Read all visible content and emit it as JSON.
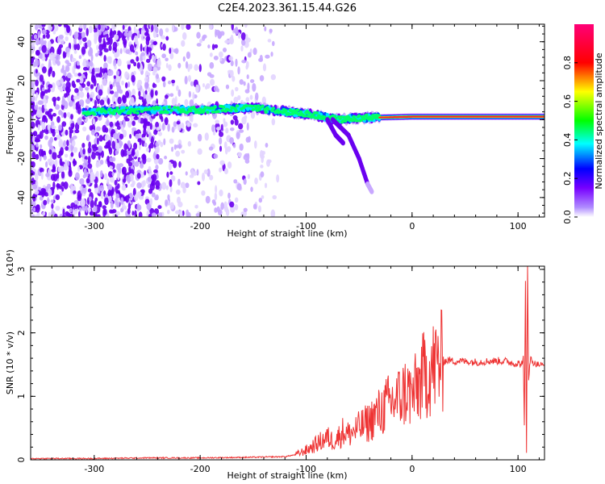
{
  "title": "C2E4.2023.361.15.44.G26",
  "chart_data": [
    {
      "type": "heatmap",
      "xlabel": "Height of straight line (km)",
      "ylabel": "Frequency (Hz)",
      "xlim": [
        -360,
        125
      ],
      "ylim": [
        -50,
        49
      ],
      "xticks": [
        -300,
        -200,
        -100,
        0,
        100
      ],
      "xtick_labels": [
        "-300",
        "-200",
        "-100",
        "0",
        "100"
      ],
      "yticks": [
        -40,
        -20,
        0,
        20,
        40
      ],
      "ytick_labels": [
        "-40",
        "-20",
        "0",
        "20",
        "40"
      ],
      "colorbar": {
        "label": "Normalized spectral amplitude",
        "range": [
          0,
          1
        ],
        "ticks": [
          0,
          0.2,
          0.4,
          0.6,
          0.8
        ],
        "tick_labels": [
          "0.0",
          "0.2",
          "0.4",
          "0.6",
          "0.8"
        ],
        "colors": [
          "#ffffff",
          "#7700ff",
          "#0000ff",
          "#00ffff",
          "#00ff00",
          "#ffff00",
          "#ff0000",
          "#ff0077"
        ]
      },
      "features": [
        {
          "kind": "noise-band",
          "x_range": [
            -360,
            -125
          ],
          "y_range": [
            -50,
            49
          ]
        },
        {
          "kind": "ridge",
          "points": [
            [
              -310,
              4
            ],
            [
              -250,
              5
            ],
            [
              -200,
              5
            ],
            [
              -150,
              6
            ],
            [
              -100,
              3
            ],
            [
              -70,
              0
            ],
            [
              -40,
              1
            ],
            [
              0,
              1.5
            ],
            [
              50,
              1.5
            ],
            [
              100,
              1.5
            ],
            [
              125,
              1.5
            ]
          ]
        },
        {
          "kind": "branch",
          "points": [
            [
              -75,
              0
            ],
            [
              -60,
              -8
            ],
            [
              -50,
              -20
            ],
            [
              -42,
              -33
            ],
            [
              -38,
              -37
            ]
          ]
        },
        {
          "kind": "branch",
          "points": [
            [
              -80,
              0
            ],
            [
              -72,
              -8
            ],
            [
              -65,
              -12
            ]
          ]
        }
      ]
    },
    {
      "type": "line",
      "xlabel": "Height of straight line (km)",
      "ylabel": "SNR (10 * v/v)",
      "y_scale_label": "(x10⁴)",
      "xlim": [
        -360,
        125
      ],
      "ylim": [
        0,
        3.05
      ],
      "xticks": [
        -300,
        -200,
        -100,
        0,
        100
      ],
      "xtick_labels": [
        "-300",
        "-200",
        "-100",
        "0",
        "100"
      ],
      "yticks": [
        0,
        1,
        2,
        3
      ],
      "ytick_labels": [
        "0",
        "1",
        "2",
        "3"
      ],
      "series": [
        {
          "color": "#ee3333",
          "x": [
            -360,
            -300,
            -250,
            -200,
            -150,
            -120,
            -110,
            -100,
            -95,
            -90,
            -85,
            -80,
            -75,
            -70,
            -65,
            -60,
            -55,
            -50,
            -45,
            -40,
            -35,
            -30,
            -25,
            -20,
            -15,
            -10,
            -5,
            0,
            5,
            10,
            15,
            20,
            25,
            30,
            35,
            40,
            45,
            50,
            60,
            70,
            80,
            90,
            95,
            100,
            103,
            105,
            106,
            107,
            108,
            109,
            110,
            112,
            115,
            120,
            125
          ],
          "y": [
            0.02,
            0.02,
            0.03,
            0.03,
            0.04,
            0.05,
            0.08,
            0.15,
            0.2,
            0.25,
            0.3,
            0.35,
            0.3,
            0.35,
            0.45,
            0.4,
            0.45,
            0.5,
            0.55,
            0.6,
            0.7,
            0.75,
            0.85,
            0.9,
            0.95,
            1.0,
            1.1,
            1.0,
            1.15,
            1.3,
            1.4,
            1.45,
            1.52,
            1.55,
            1.57,
            1.55,
            1.56,
            1.55,
            1.54,
            1.55,
            1.56,
            1.55,
            1.52,
            1.52,
            1.5,
            1.6,
            0.5,
            2.8,
            0.1,
            3.1,
            1.3,
            1.6,
            1.52,
            1.5,
            1.48
          ]
        }
      ]
    }
  ]
}
